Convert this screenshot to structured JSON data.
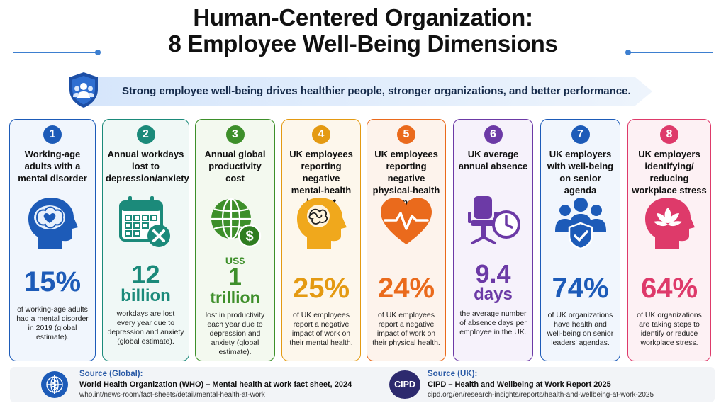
{
  "title": {
    "line1": "Human-Centered Organization:",
    "line2": "8 Employee Well-Being Dimensions"
  },
  "banner": {
    "text": "Strong employee well-being drives healthier people, stronger organizations, and better performance.",
    "icon": "shield-people-icon"
  },
  "cards": [
    {
      "num": "1",
      "title": "Working-age adults with a mental disorder",
      "stat_prefix": "",
      "stat_main": "15%",
      "stat_sub": "",
      "desc": "of working-age adults had a mental disorder in 2019 (global estimate).",
      "color": "#1d5bb8",
      "bg": "#f1f6fd",
      "icon": "brain-heart-icon"
    },
    {
      "num": "2",
      "title": "Annual workdays lost to depression/anxiety",
      "stat_prefix": "",
      "stat_main": "12",
      "stat_sub": "billion",
      "desc": "workdays are lost every year due to depression and anxiety (global estimate).",
      "color": "#1b8a7a",
      "bg": "#f0f8f6",
      "icon": "calendar-x-icon"
    },
    {
      "num": "3",
      "title": "Annual global productivity cost",
      "stat_prefix": "US$",
      "stat_main": "1",
      "stat_sub": "trillion",
      "desc": "lost in productivity each year due to depression and anxiety (global estimate).",
      "color": "#3d8f2a",
      "bg": "#f3f9ef",
      "icon": "globe-dollar-icon"
    },
    {
      "num": "4",
      "title": "UK employees reporting negative mental-health impact",
      "stat_prefix": "",
      "stat_main": "25%",
      "stat_sub": "",
      "desc": "of UK employees report a negative impact of work on their mental health.",
      "color": "#e49a12",
      "bg": "#fdf7ec",
      "icon": "head-tangle-icon"
    },
    {
      "num": "5",
      "title": "UK employees reporting negative physical-health impact",
      "stat_prefix": "",
      "stat_main": "24%",
      "stat_sub": "",
      "desc": "of UK employees report a negative impact of work on their physical health.",
      "color": "#ea6a1c",
      "bg": "#fdf3ec",
      "icon": "heartbeat-icon"
    },
    {
      "num": "6",
      "title": "UK average annual absence",
      "stat_prefix": "",
      "stat_main": "9.4",
      "stat_sub": "days",
      "desc": "the average number of absence days per employee in the UK.",
      "color": "#6c3aa6",
      "bg": "#f6f2fb",
      "icon": "chair-clock-icon"
    },
    {
      "num": "7",
      "title": "UK employers with well-being on senior agenda",
      "stat_prefix": "",
      "stat_main": "74%",
      "stat_sub": "",
      "desc": "of UK organizations have health and well-being on senior leaders' agendas.",
      "color": "#1d5bb8",
      "bg": "#f1f6fd",
      "icon": "team-shield-icon"
    },
    {
      "num": "8",
      "title": "UK employers identifying/ reducing workplace stress",
      "stat_prefix": "",
      "stat_main": "64%",
      "stat_sub": "",
      "desc": "of UK organizations are taking steps to identify or reduce workplace stress.",
      "color": "#de3a6a",
      "bg": "#fdf1f4",
      "icon": "head-lotus-icon"
    }
  ],
  "footer": {
    "global": {
      "label": "Source (Global):",
      "title": "World Health Organization (WHO) – Mental health at work fact sheet, 2024",
      "url": "who.int/news-room/fact-sheets/detail/mental-health-at-work",
      "logo": "who-emblem-icon"
    },
    "uk": {
      "label": "Source (UK):",
      "title": "CIPD – Health and Wellbeing at Work Report 2025",
      "url": "cipd.org/en/research-insights/reports/health-and-wellbeing-at-work-2025",
      "logo_text": "CIPD"
    }
  }
}
